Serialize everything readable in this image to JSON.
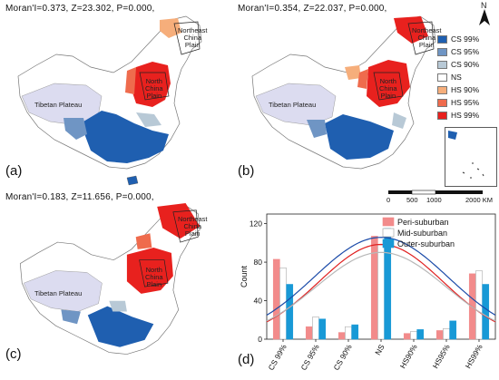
{
  "panels": [
    {
      "label": "(a)",
      "moran": "Moran'I=0.373,  Z=23.302,  P=0.000,"
    },
    {
      "label": "(b)",
      "moran": "Moran'I=0.354,  Z=22.037,  P=0.000,"
    },
    {
      "label": "(c)",
      "moran": "Moran'I=0.183,  Z=11.656,  P=0.000,"
    },
    {
      "label": "(d)"
    }
  ],
  "regions": {
    "northeast": "Northeast\nChina\nPlain",
    "north": "North\nChina\nPlain",
    "tibet": "Tibetan Plateau"
  },
  "north_arrow": "N",
  "legend": [
    {
      "label": "CS 99%",
      "color": "#1f5fb0"
    },
    {
      "label": "CS 95%",
      "color": "#6f95c4"
    },
    {
      "label": "CS 90%",
      "color": "#b8c9d6"
    },
    {
      "label": "NS",
      "color": "#ffffff"
    },
    {
      "label": "HS 90%",
      "color": "#f6ae7b"
    },
    {
      "label": "HS 95%",
      "color": "#ef6b4d"
    },
    {
      "label": "HS 99%",
      "color": "#e8211e"
    }
  ],
  "scale": {
    "ticks": [
      "0",
      "500",
      "1000",
      "2000 KM"
    ]
  },
  "chart_data": {
    "type": "bar",
    "categories": [
      "CS 99%",
      "CS 95%",
      "CS 90%",
      "NS",
      "HS90%",
      "HS95%",
      "HS99%"
    ],
    "ylabel": "Count",
    "ylim": [
      0,
      130
    ],
    "yticks": [
      "0",
      "40",
      "80",
      "120"
    ],
    "legend_position": "top-right",
    "series": [
      {
        "name": "Peri-suburban",
        "color": "#f28b8b",
        "values": [
          83,
          13,
          7,
          107,
          6,
          9,
          68
        ]
      },
      {
        "name": "Mid-suburban",
        "color": "#ffffff",
        "values": [
          74,
          23,
          13,
          98,
          8,
          11,
          71
        ]
      },
      {
        "name": "Outer-suburban",
        "color": "#1899d6",
        "values": [
          57,
          21,
          15,
          115,
          10,
          19,
          57
        ]
      }
    ],
    "curves": [
      {
        "color": "#e02020"
      },
      {
        "color": "#b8b8b8"
      },
      {
        "color": "#1a4aa8"
      }
    ]
  }
}
